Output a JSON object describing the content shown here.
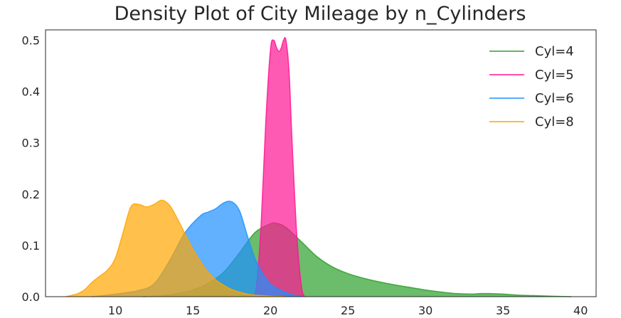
{
  "chart_data": {
    "type": "area",
    "title": "Density Plot of City Mileage by n_Cylinders",
    "xlabel": "",
    "ylabel": "",
    "xlim": [
      5.5,
      41.0
    ],
    "ylim": [
      0,
      0.52
    ],
    "xticks": [
      10,
      15,
      20,
      25,
      30,
      35,
      40
    ],
    "yticks": [
      0.0,
      0.1,
      0.2,
      0.3,
      0.4,
      0.5
    ],
    "ytick_labels": [
      "0.0",
      "0.1",
      "0.2",
      "0.3",
      "0.4",
      "0.5"
    ],
    "grid": false,
    "legend_position": "top-right",
    "series": [
      {
        "name": "Cyl=4",
        "color": "#2ca02c",
        "x": [
          11.8,
          13,
          14,
          15,
          16,
          17,
          18,
          19,
          20,
          20.4,
          21,
          22,
          23,
          24,
          25,
          26,
          27,
          28,
          29,
          30,
          31,
          32,
          33,
          33.5,
          34,
          35,
          36,
          37,
          38,
          39.4
        ],
        "y": [
          0.0,
          0.002,
          0.006,
          0.013,
          0.026,
          0.048,
          0.085,
          0.125,
          0.142,
          0.143,
          0.135,
          0.107,
          0.078,
          0.058,
          0.045,
          0.036,
          0.029,
          0.023,
          0.018,
          0.013,
          0.009,
          0.006,
          0.005,
          0.006,
          0.006,
          0.005,
          0.003,
          0.002,
          0.001,
          0.0
        ]
      },
      {
        "name": "Cyl=5",
        "color": "#ff1493",
        "x": [
          18.9,
          19.1,
          19.4,
          19.7,
          20.0,
          20.2,
          20.4,
          20.55,
          20.7,
          20.85,
          21.0,
          21.2,
          21.4,
          21.7,
          22.0,
          22.2
        ],
        "y": [
          0.0,
          0.02,
          0.14,
          0.34,
          0.48,
          0.5,
          0.485,
          0.478,
          0.485,
          0.5,
          0.5,
          0.44,
          0.3,
          0.12,
          0.02,
          0.0
        ]
      },
      {
        "name": "Cyl=6",
        "color": "#1e90ff",
        "x": [
          8.5,
          9.5,
          10.5,
          11.5,
          12.5,
          13.5,
          14.5,
          15.5,
          16.0,
          16.5,
          17.0,
          17.5,
          18.0,
          18.5,
          19.0,
          19.5,
          20.0,
          20.5,
          21.0,
          21.5,
          22.0
        ],
        "y": [
          0.0,
          0.003,
          0.007,
          0.012,
          0.025,
          0.07,
          0.125,
          0.158,
          0.165,
          0.172,
          0.183,
          0.185,
          0.168,
          0.12,
          0.075,
          0.045,
          0.025,
          0.015,
          0.008,
          0.003,
          0.0
        ]
      },
      {
        "name": "Cyl=8",
        "color": "#ffa500",
        "x": [
          6.8,
          7.5,
          8.0,
          8.5,
          9.0,
          9.5,
          10.0,
          10.5,
          11.0,
          11.5,
          12.0,
          12.5,
          13.0,
          13.5,
          14.0,
          14.5,
          15.0,
          15.5,
          16.0,
          16.5,
          17.0,
          17.5,
          18.0,
          18.5,
          19.0,
          19.5,
          20.0,
          20.5,
          21.0
        ],
        "y": [
          0.0,
          0.005,
          0.013,
          0.028,
          0.04,
          0.052,
          0.075,
          0.125,
          0.175,
          0.18,
          0.175,
          0.18,
          0.188,
          0.178,
          0.152,
          0.122,
          0.093,
          0.068,
          0.047,
          0.032,
          0.022,
          0.014,
          0.009,
          0.005,
          0.003,
          0.002,
          0.001,
          0.0005,
          0.0
        ]
      }
    ]
  }
}
